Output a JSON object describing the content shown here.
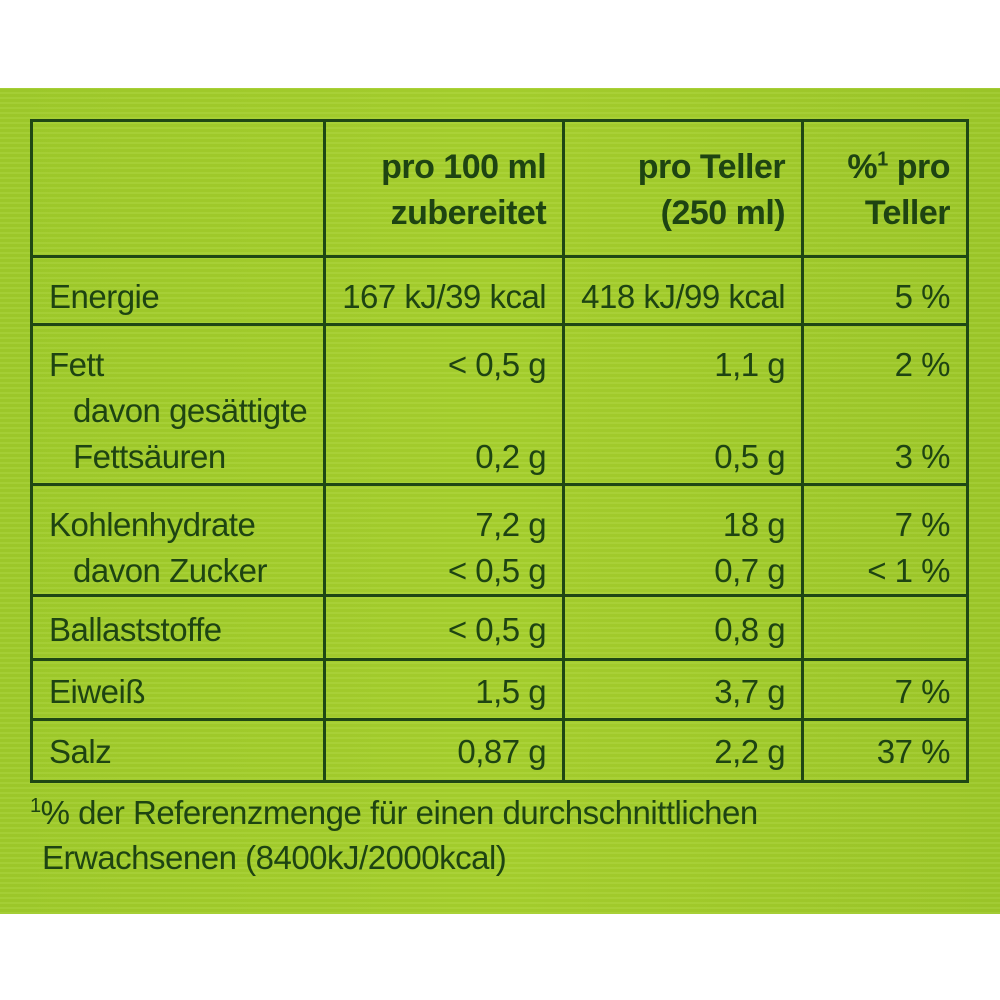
{
  "header": {
    "col_per100_line1": "pro 100 ml",
    "col_per100_line2": "zubereitet",
    "col_plate_line1": "pro Teller",
    "col_plate_line2": "(250  ml)",
    "col_ri_prefix": "%",
    "col_ri_sup": "1",
    "col_ri_line1_suffix": " pro",
    "col_ri_line2": "Teller"
  },
  "rows": {
    "energie": {
      "label": "Energie",
      "per100": "167 kJ/39 kcal",
      "plate": "418 kJ/99 kcal",
      "ri": "5 %"
    },
    "fett": {
      "label": "Fett",
      "per100": "< 0,5 g",
      "plate": "1,1 g",
      "ri": "2 %"
    },
    "gesaettigt": {
      "label_line1": "davon gesättigte",
      "label_line2": "Fettsäuren",
      "per100": "0,2 g",
      "plate": "0,5 g",
      "ri": "3 %"
    },
    "kohlenhydrate": {
      "label": "Kohlenhydrate",
      "per100": "7,2 g",
      "plate": "18 g",
      "ri": "7 %"
    },
    "zucker": {
      "label": "davon Zucker",
      "per100": "< 0,5 g",
      "plate": "0,7 g",
      "ri": "< 1 %"
    },
    "ballaststoffe": {
      "label": "Ballaststoffe",
      "per100": "< 0,5 g",
      "plate": "0,8 g",
      "ri": ""
    },
    "eiweiss": {
      "label": "Eiweiß",
      "per100": "1,5 g",
      "plate": "3,7 g",
      "ri": "7 %"
    },
    "salz": {
      "label": "Salz",
      "per100": "0,87 g",
      "plate": "2,2 g",
      "ri": "37 %"
    }
  },
  "footnote": {
    "sup": "1",
    "line1": "% der Referenzmenge für einen durchschnittlichen",
    "line2": "Erwachsenen (8400kJ/2000kcal)"
  },
  "colors": {
    "panel_green": "#a6d02d",
    "text_dark_green": "#1e4412"
  }
}
